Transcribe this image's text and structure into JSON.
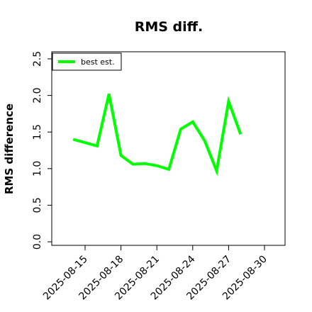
{
  "chart_data": {
    "type": "line",
    "title": "RMS diff.",
    "xlabel": "",
    "ylabel": "RMS difference",
    "ylim": [
      0.0,
      2.5
    ],
    "yticks": [
      0.0,
      0.5,
      1.0,
      1.5,
      2.0,
      2.5
    ],
    "ytick_labels": [
      "0.0",
      "0.5",
      "1.0",
      "1.5",
      "2.0",
      "2.5"
    ],
    "xticks": [
      "2025-08-15",
      "2025-08-18",
      "2025-08-21",
      "2025-08-24",
      "2025-08-27",
      "2025-08-30"
    ],
    "grid": false,
    "legend_position": "top-left",
    "series": [
      {
        "name": "best est.",
        "color": "#00ff00",
        "x": [
          "2025-08-14",
          "2025-08-16",
          "2025-08-17",
          "2025-08-18",
          "2025-08-19",
          "2025-08-20",
          "2025-08-21",
          "2025-08-22",
          "2025-08-23",
          "2025-08-24",
          "2025-08-25",
          "2025-08-26",
          "2025-08-27",
          "2025-08-28"
        ],
        "y": [
          1.4,
          1.31,
          2.02,
          1.18,
          1.06,
          1.07,
          1.04,
          0.99,
          1.54,
          1.64,
          1.38,
          0.97,
          1.92,
          1.47
        ]
      }
    ]
  }
}
